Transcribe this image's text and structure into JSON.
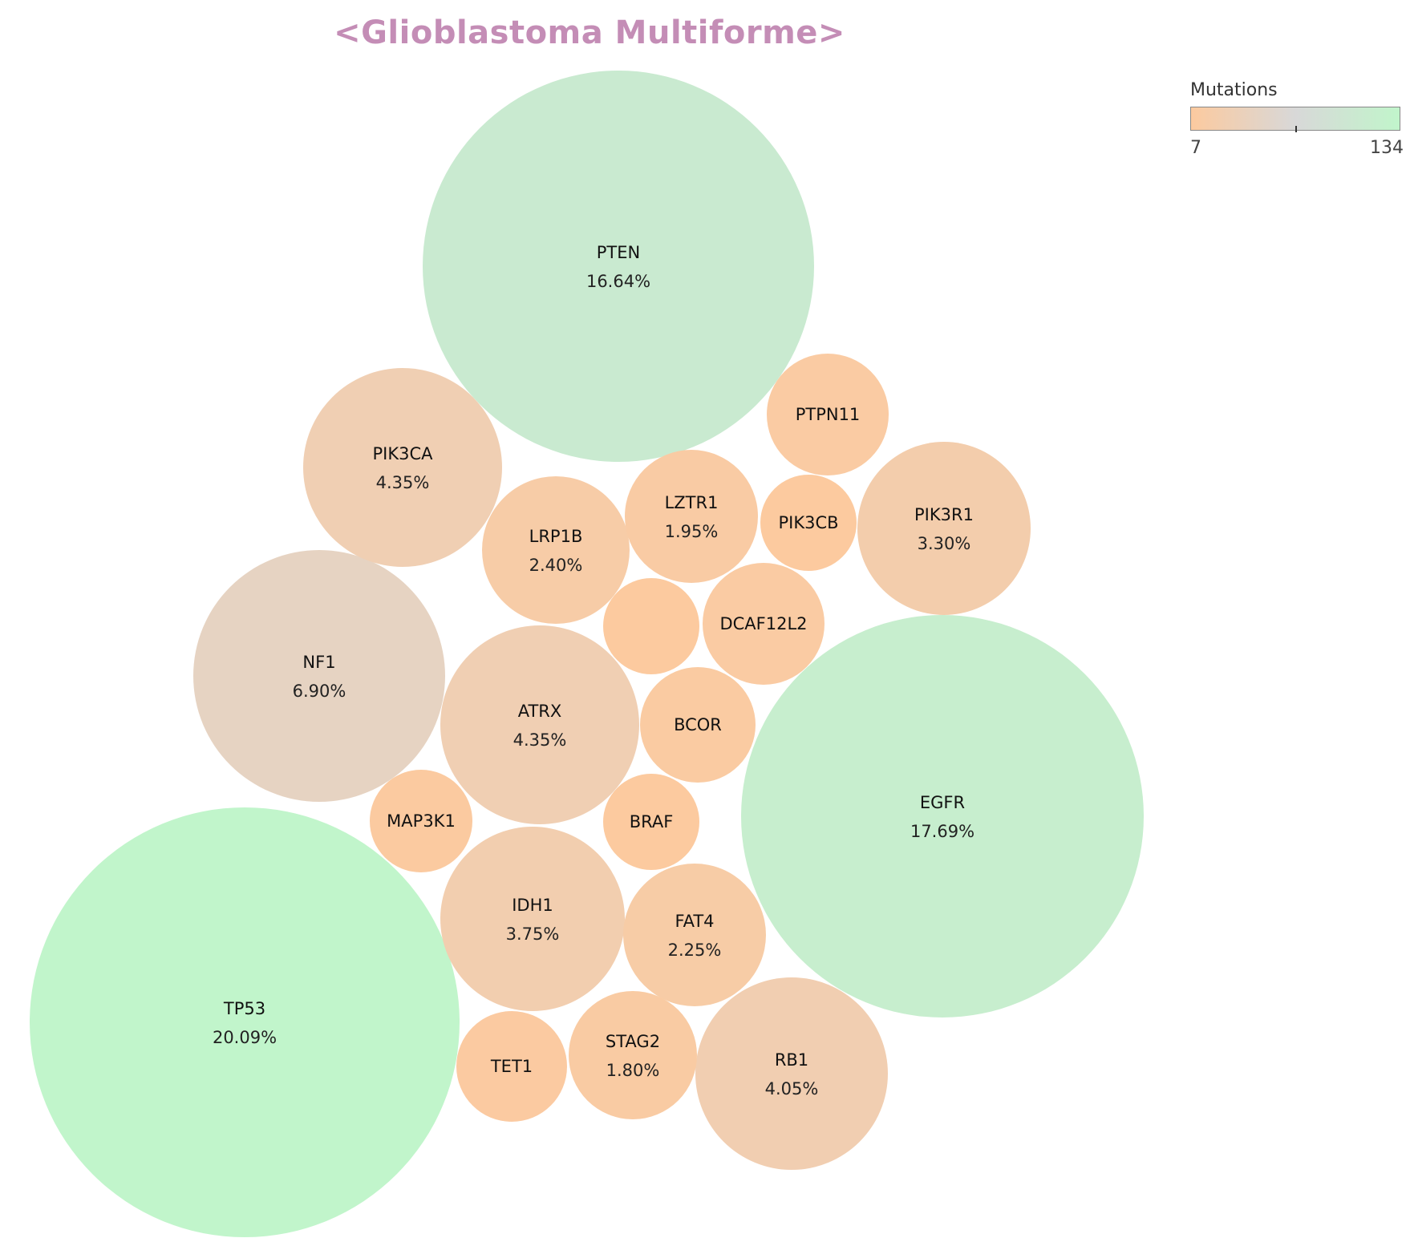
{
  "title": "<Glioblastoma Multiforme>",
  "legend": {
    "title": "Mutations",
    "min_label": "7",
    "max_label": "134",
    "min": 7,
    "max": 134,
    "color_low": "#fcca9f",
    "color_mid": "#d8d8d8",
    "color_high": "#c1f5cb",
    "placement": "top-right"
  },
  "chart_data": {
    "type": "bubble",
    "title": "<Glioblastoma Multiforme>",
    "color_metric": "Mutations",
    "items": [
      {
        "name": "TP53",
        "label": "20.09%",
        "percent": 20.09,
        "mutations": 134
      },
      {
        "name": "EGFR",
        "label": "17.69%",
        "percent": 17.69,
        "mutations": 118
      },
      {
        "name": "PTEN",
        "label": "16.64%",
        "percent": 16.64,
        "mutations": 111
      },
      {
        "name": "NF1",
        "label": "6.90%",
        "percent": 6.9,
        "mutations": 46
      },
      {
        "name": "PIK3CA",
        "label": "4.35%",
        "percent": 4.35,
        "mutations": 29
      },
      {
        "name": "ATRX",
        "label": "4.35%",
        "percent": 4.35,
        "mutations": 29
      },
      {
        "name": "RB1",
        "label": "4.05%",
        "percent": 4.05,
        "mutations": 27
      },
      {
        "name": "IDH1",
        "label": "3.75%",
        "percent": 3.75,
        "mutations": 25
      },
      {
        "name": "PIK3R1",
        "label": "3.30%",
        "percent": 3.3,
        "mutations": 22
      },
      {
        "name": "LRP1B",
        "label": "2.40%",
        "percent": 2.4,
        "mutations": 16
      },
      {
        "name": "FAT4",
        "label": "2.25%",
        "percent": 2.25,
        "mutations": 15
      },
      {
        "name": "LZTR1",
        "label": "1.95%",
        "percent": 1.95,
        "mutations": 13
      },
      {
        "name": "STAG2",
        "label": "1.80%",
        "percent": 1.8,
        "mutations": 12
      },
      {
        "name": "PTPN11",
        "label": "",
        "percent": 1.65,
        "mutations": 11
      },
      {
        "name": "DCAF12L2",
        "label": "",
        "percent": 1.65,
        "mutations": 11
      },
      {
        "name": "BCOR",
        "label": "",
        "percent": 1.5,
        "mutations": 10
      },
      {
        "name": "TET1",
        "label": "",
        "percent": 1.35,
        "mutations": 9
      },
      {
        "name": "MAP3K1",
        "label": "",
        "percent": 1.2,
        "mutations": 8
      },
      {
        "name": "PIK3CB",
        "label": "",
        "percent": 1.05,
        "mutations": 7
      },
      {
        "name": "BRAF",
        "label": "",
        "percent": 1.05,
        "mutations": 7
      },
      {
        "name": "",
        "label": "",
        "percent": 1.05,
        "mutations": 7
      }
    ]
  }
}
